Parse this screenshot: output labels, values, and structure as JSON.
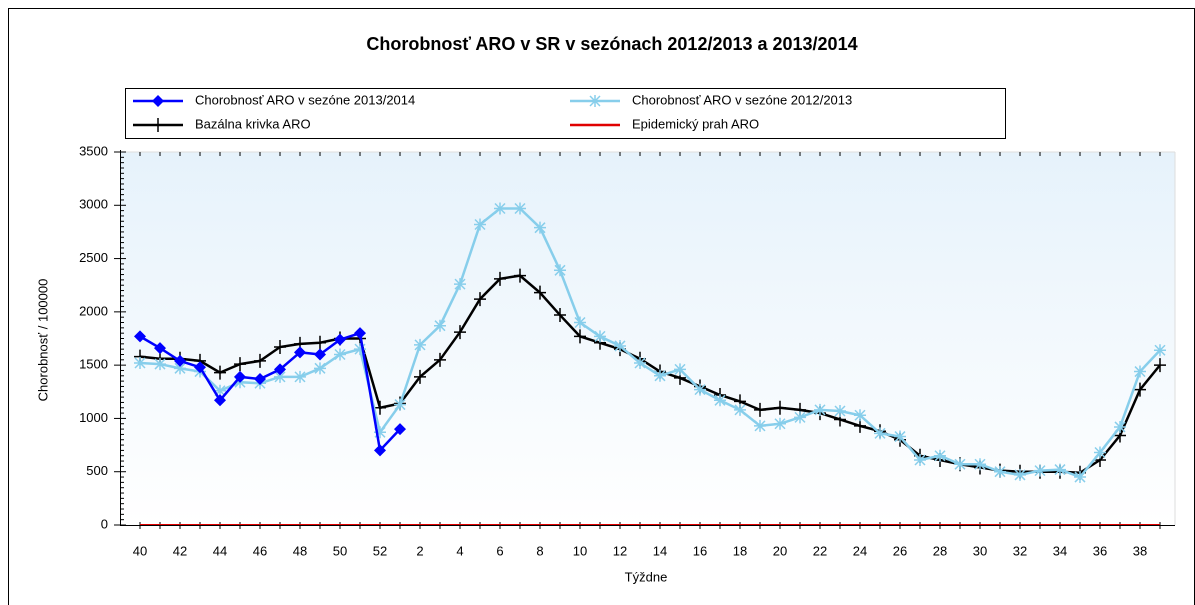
{
  "chart_data": {
    "type": "line",
    "title": "Chorobnosť ARO v SR v sezónach 2012/2013 a 2013/2014",
    "xlabel": "Týždne",
    "ylabel": "Chorobnosť / 100000",
    "categories": [
      "40",
      null,
      "42",
      null,
      "44",
      null,
      "46",
      null,
      "48",
      null,
      "50",
      null,
      "52",
      null,
      "2",
      null,
      "4",
      null,
      "6",
      null,
      "8",
      null,
      "10",
      null,
      "12",
      null,
      "14",
      null,
      "16",
      null,
      "18",
      null,
      "20",
      null,
      "22",
      null,
      "24",
      null,
      "26",
      null,
      "28",
      null,
      "30",
      null,
      "32",
      null,
      "34",
      null,
      "36",
      null,
      "38",
      null
    ],
    "ylim": [
      0,
      3500
    ],
    "yticks": [
      0,
      500,
      1000,
      1500,
      2000,
      2500,
      3000,
      3500
    ],
    "series": [
      {
        "name": "Chorobnosť ARO v sezóne 2013/2014",
        "color": "#0000ff",
        "marker": "diamond",
        "values": [
          1770,
          1660,
          1540,
          1480,
          1170,
          1390,
          1370,
          1460,
          1620,
          1600,
          1740,
          1800,
          700,
          900,
          null,
          null,
          null,
          null,
          null,
          null,
          null,
          null,
          null,
          null,
          null,
          null,
          null,
          null,
          null,
          null,
          null,
          null,
          null,
          null,
          null,
          null,
          null,
          null,
          null,
          null,
          null,
          null,
          null,
          null,
          null,
          null,
          null,
          null,
          null,
          null,
          null,
          null
        ]
      },
      {
        "name": "Chorobnosť ARO v sezóne 2012/2013",
        "color": "#87ceeb",
        "marker": "star",
        "values": [
          1520,
          1510,
          1470,
          1440,
          1260,
          1340,
          1330,
          1390,
          1390,
          1470,
          1600,
          1650,
          870,
          1130,
          1690,
          1870,
          2260,
          2820,
          2970,
          2970,
          2790,
          2390,
          1900,
          1770,
          1680,
          1520,
          1400,
          1460,
          1270,
          1170,
          1080,
          930,
          950,
          1010,
          1080,
          1070,
          1030,
          860,
          830,
          610,
          650,
          570,
          570,
          500,
          470,
          510,
          520,
          450,
          680,
          920,
          1440,
          1640
        ]
      },
      {
        "name": "Bazálna krivka ARO",
        "color": "#000000",
        "marker": "plus",
        "values": [
          1580,
          1560,
          1560,
          1540,
          1430,
          1510,
          1540,
          1670,
          1700,
          1710,
          1750,
          1750,
          1100,
          1140,
          1390,
          1550,
          1810,
          2120,
          2310,
          2340,
          2180,
          1970,
          1770,
          1710,
          1650,
          1560,
          1440,
          1380,
          1300,
          1220,
          1160,
          1080,
          1100,
          1080,
          1050,
          990,
          930,
          880,
          800,
          650,
          610,
          570,
          540,
          510,
          500,
          500,
          500,
          490,
          610,
          840,
          1270,
          1500
        ]
      },
      {
        "name": "Epidemický prah ARO",
        "color": "#e00000",
        "marker": "none",
        "values": [
          0,
          0,
          0,
          0,
          0,
          0,
          0,
          0,
          0,
          0,
          0,
          0,
          0,
          0,
          0,
          0,
          0,
          0,
          0,
          0,
          0,
          0,
          0,
          0,
          0,
          0,
          0,
          0,
          0,
          0,
          0,
          0,
          0,
          0,
          0,
          0,
          0,
          0,
          0,
          0,
          0,
          0,
          0,
          0,
          0,
          0,
          0,
          0,
          0,
          0,
          0,
          0
        ]
      }
    ]
  }
}
